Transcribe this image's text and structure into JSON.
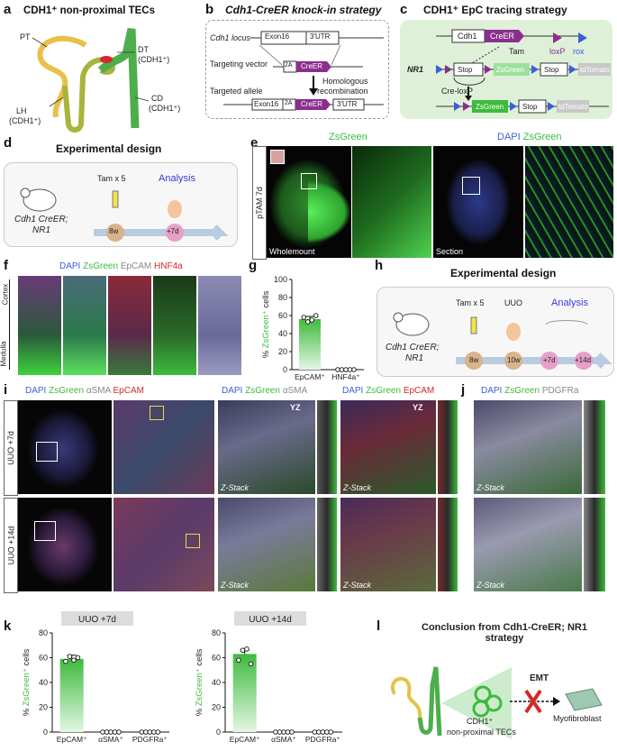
{
  "panels": {
    "a": {
      "letter": "a",
      "title": "CDH1⁺ non-proximal TECs",
      "pt": "PT",
      "dt": "DT",
      "dt_sub": "(CDH1⁺)",
      "lh": "LH",
      "lh_sub": "(CDH1⁺)",
      "cd": "CD",
      "cd_sub": "(CDH1⁺)"
    },
    "b": {
      "letter": "b",
      "title": "Cdh1-CreER knock-in strategy",
      "locus": "Cdh1 locus",
      "exon16": "Exon16",
      "utr": "3'UTR",
      "targeting_vector": "Targeting vector",
      "t2a": "2A",
      "creer": "CreER",
      "homologous": "Homologous",
      "recombination": "recombination",
      "targeted_allele": "Targeted allele"
    },
    "c": {
      "letter": "c",
      "title": "CDH1⁺ EpC tracing strategy",
      "cdh1": "Cdh1",
      "creer": "CreER",
      "tam": "Tam",
      "loxp": "loxP",
      "rox": "rox",
      "nr1": "NR1",
      "stop": "Stop",
      "zsgreen": "ZsGreen",
      "tdtomato": "tdTomato",
      "creloxp": "Cre-loxP"
    },
    "d": {
      "letter": "d",
      "title": "Experimental design",
      "mouse": "Cdh1 CreER;",
      "mouse2": "NR1",
      "tam": "Tam x 5",
      "analysis": "Analysis",
      "t1": "8w",
      "t2": "+7d"
    },
    "e": {
      "letter": "e",
      "zsgreen": "ZsGreen",
      "dapi": "DAPI",
      "zsgreen2": "ZsGreen",
      "ptam": "pTAM 7d",
      "wholemount": "Wholemount",
      "section": "Section"
    },
    "f": {
      "letter": "f",
      "dapi": "DAPI",
      "zsgreen": "ZsGreen",
      "epcam": "EpCAM",
      "hnf4a": "HNF4a",
      "cortex": "Cortex",
      "medulla": "Medulla"
    },
    "g": {
      "letter": "g"
    },
    "h": {
      "letter": "h",
      "title": "Experimental design",
      "mouse": "Cdh1 CreER;",
      "mouse2": "NR1",
      "tam": "Tam x 5",
      "uuo": "UUO",
      "analysis": "Analysis",
      "t1": "8w",
      "t2": "10w",
      "t3": "+7d",
      "t4": "+14d"
    },
    "i": {
      "letter": "i",
      "dapi": "DAPI",
      "zsgreen": "ZsGreen",
      "asma": "αSMA",
      "epcam": "EpCAM",
      "row1": "UUO +7d",
      "row2": "UUO +14d",
      "zstack": "Z-Stack",
      "yz": "YZ"
    },
    "j": {
      "letter": "j",
      "dapi": "DAPI",
      "zsgreen": "ZsGreen",
      "pdgfra": "PDGFRa",
      "zstack": "Z-Stack"
    },
    "k": {
      "letter": "k"
    },
    "l": {
      "letter": "l",
      "title": "Conclusion from Cdh1-CreER; NR1",
      "title2": "strategy",
      "emt": "EMT",
      "cells": "CDH1⁺",
      "cells2": "non-proximal TECs",
      "myo": "Myofibroblast"
    }
  },
  "colors": {
    "green": "#3dbb3d",
    "purple": "#8b2f8f",
    "blue": "#3a5fd9",
    "red": "#d62828",
    "gray": "#888888"
  },
  "chart_data": [
    {
      "id": "g",
      "type": "bar",
      "categories": [
        "EpCAM⁺",
        "HNF4a⁺"
      ],
      "values": [
        56,
        0
      ],
      "points": [
        [
          58,
          53,
          55,
          60
        ],
        [
          0,
          0,
          0,
          0,
          0
        ]
      ],
      "ylabel": "% ZsGreen⁺ cells",
      "ylim": [
        0,
        100
      ],
      "yticks": [
        0,
        20,
        40,
        60,
        80,
        100
      ]
    },
    {
      "id": "k1",
      "type": "bar",
      "title": "UUO +7d",
      "categories": [
        "EpCAM⁺",
        "αSMA⁺",
        "PDGFRa⁺"
      ],
      "values": [
        59,
        0,
        0
      ],
      "points": [
        [
          57,
          61,
          58,
          60
        ],
        [
          0,
          0,
          0,
          0,
          0
        ],
        [
          0,
          0,
          0,
          0,
          0
        ]
      ],
      "ylabel": "% ZsGreen⁺ cells",
      "ylim": [
        0,
        80
      ],
      "yticks": [
        0,
        20,
        40,
        60,
        80
      ]
    },
    {
      "id": "k2",
      "type": "bar",
      "title": "UUO +14d",
      "categories": [
        "EpCAM⁺",
        "αSMA⁺",
        "PDGFRa⁺"
      ],
      "values": [
        63,
        0,
        0
      ],
      "points": [
        [
          58,
          66,
          67,
          55
        ],
        [
          0,
          0,
          0,
          0,
          0
        ],
        [
          0,
          0,
          0,
          0,
          0
        ]
      ],
      "ylabel": "% ZsGreen⁺ cells",
      "ylim": [
        0,
        80
      ],
      "yticks": [
        0,
        20,
        40,
        60,
        80
      ]
    }
  ]
}
